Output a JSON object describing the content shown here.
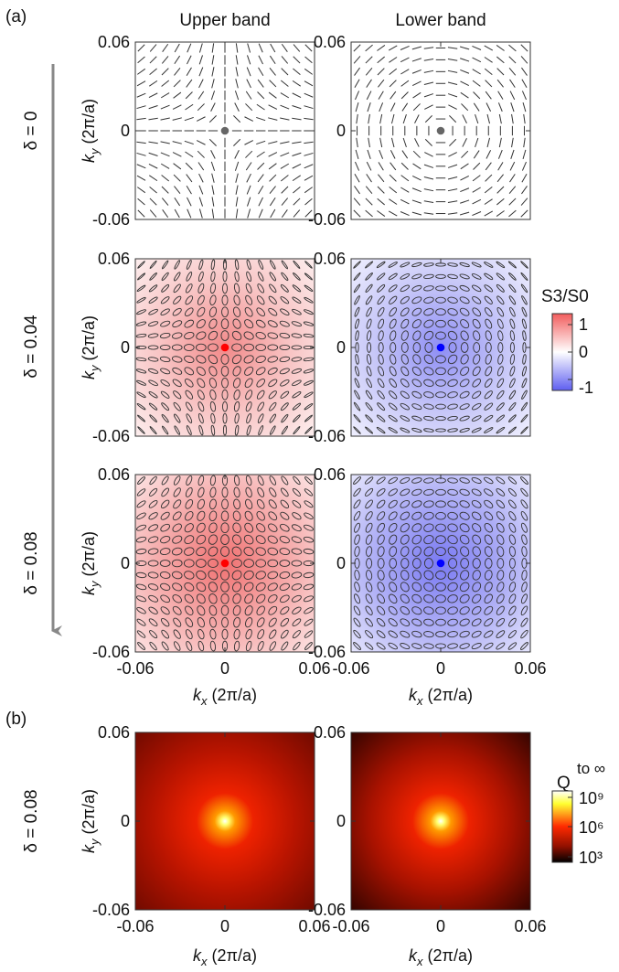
{
  "panel_a_label": "(a)",
  "panel_b_label": "(b)",
  "col_titles": [
    "Upper band",
    "Lower band"
  ],
  "row_labels": [
    "δ = 0",
    "δ = 0.04",
    "δ = 0.08"
  ],
  "row_b_label": "δ = 0.08",
  "ylabel": "k_y (2π/a)",
  "xlabel": "k_x (2π/a)",
  "tick_labels": [
    "-0.06",
    "0",
    "0.06"
  ],
  "colorbar_s": {
    "title": "S3/S0",
    "ticks": [
      "1",
      "0",
      "-1"
    ],
    "range": [
      -1,
      1
    ],
    "colors": {
      "max": "#f25c5c",
      "mid": "#ffffff",
      "min": "#5e5ef0"
    }
  },
  "colorbar_q": {
    "title": "Q",
    "title_note": "to ∞",
    "ticks": [
      "10⁹",
      "10⁶",
      "10³"
    ],
    "range_log10": [
      3,
      9
    ]
  },
  "colors": {
    "ellipse_stroke": "#333333",
    "vortex_neutral": "#666666",
    "vortex_upper": "#ff0000",
    "vortex_lower": "#0000ff",
    "arrow": "#888888"
  },
  "chart_data": [
    {
      "type": "vector-field",
      "band": "upper",
      "delta": 0,
      "xlim": [
        -0.06,
        0.06
      ],
      "ylim": [
        -0.06,
        0.06
      ],
      "s3_center": 0,
      "vortex": [
        0,
        0
      ]
    },
    {
      "type": "vector-field",
      "band": "lower",
      "delta": 0,
      "xlim": [
        -0.06,
        0.06
      ],
      "ylim": [
        -0.06,
        0.06
      ],
      "s3_center": 0,
      "vortex": [
        0,
        0
      ]
    },
    {
      "type": "vector-field",
      "band": "upper",
      "delta": 0.04,
      "xlim": [
        -0.06,
        0.06
      ],
      "ylim": [
        -0.06,
        0.06
      ],
      "s3_center": 0.7,
      "vortex": [
        0,
        0
      ]
    },
    {
      "type": "vector-field",
      "band": "lower",
      "delta": 0.04,
      "xlim": [
        -0.06,
        0.06
      ],
      "ylim": [
        -0.06,
        0.06
      ],
      "s3_center": -0.7,
      "vortex": [
        0,
        0
      ]
    },
    {
      "type": "vector-field",
      "band": "upper",
      "delta": 0.08,
      "xlim": [
        -0.06,
        0.06
      ],
      "ylim": [
        -0.06,
        0.06
      ],
      "s3_center": 0.85,
      "vortex": [
        0,
        0
      ]
    },
    {
      "type": "vector-field",
      "band": "lower",
      "delta": 0.08,
      "xlim": [
        -0.06,
        0.06
      ],
      "ylim": [
        -0.06,
        0.06
      ],
      "s3_center": -0.85,
      "vortex": [
        0,
        0
      ]
    },
    {
      "type": "heatmap",
      "band": "upper",
      "delta": 0.08,
      "quantity": "Q",
      "xlim": [
        -0.06,
        0.06
      ],
      "ylim": [
        -0.06,
        0.06
      ],
      "log10_range": [
        3,
        9
      ]
    },
    {
      "type": "heatmap",
      "band": "lower",
      "delta": 0.08,
      "quantity": "Q",
      "xlim": [
        -0.06,
        0.06
      ],
      "ylim": [
        -0.06,
        0.06
      ],
      "log10_range": [
        3,
        9
      ]
    }
  ]
}
